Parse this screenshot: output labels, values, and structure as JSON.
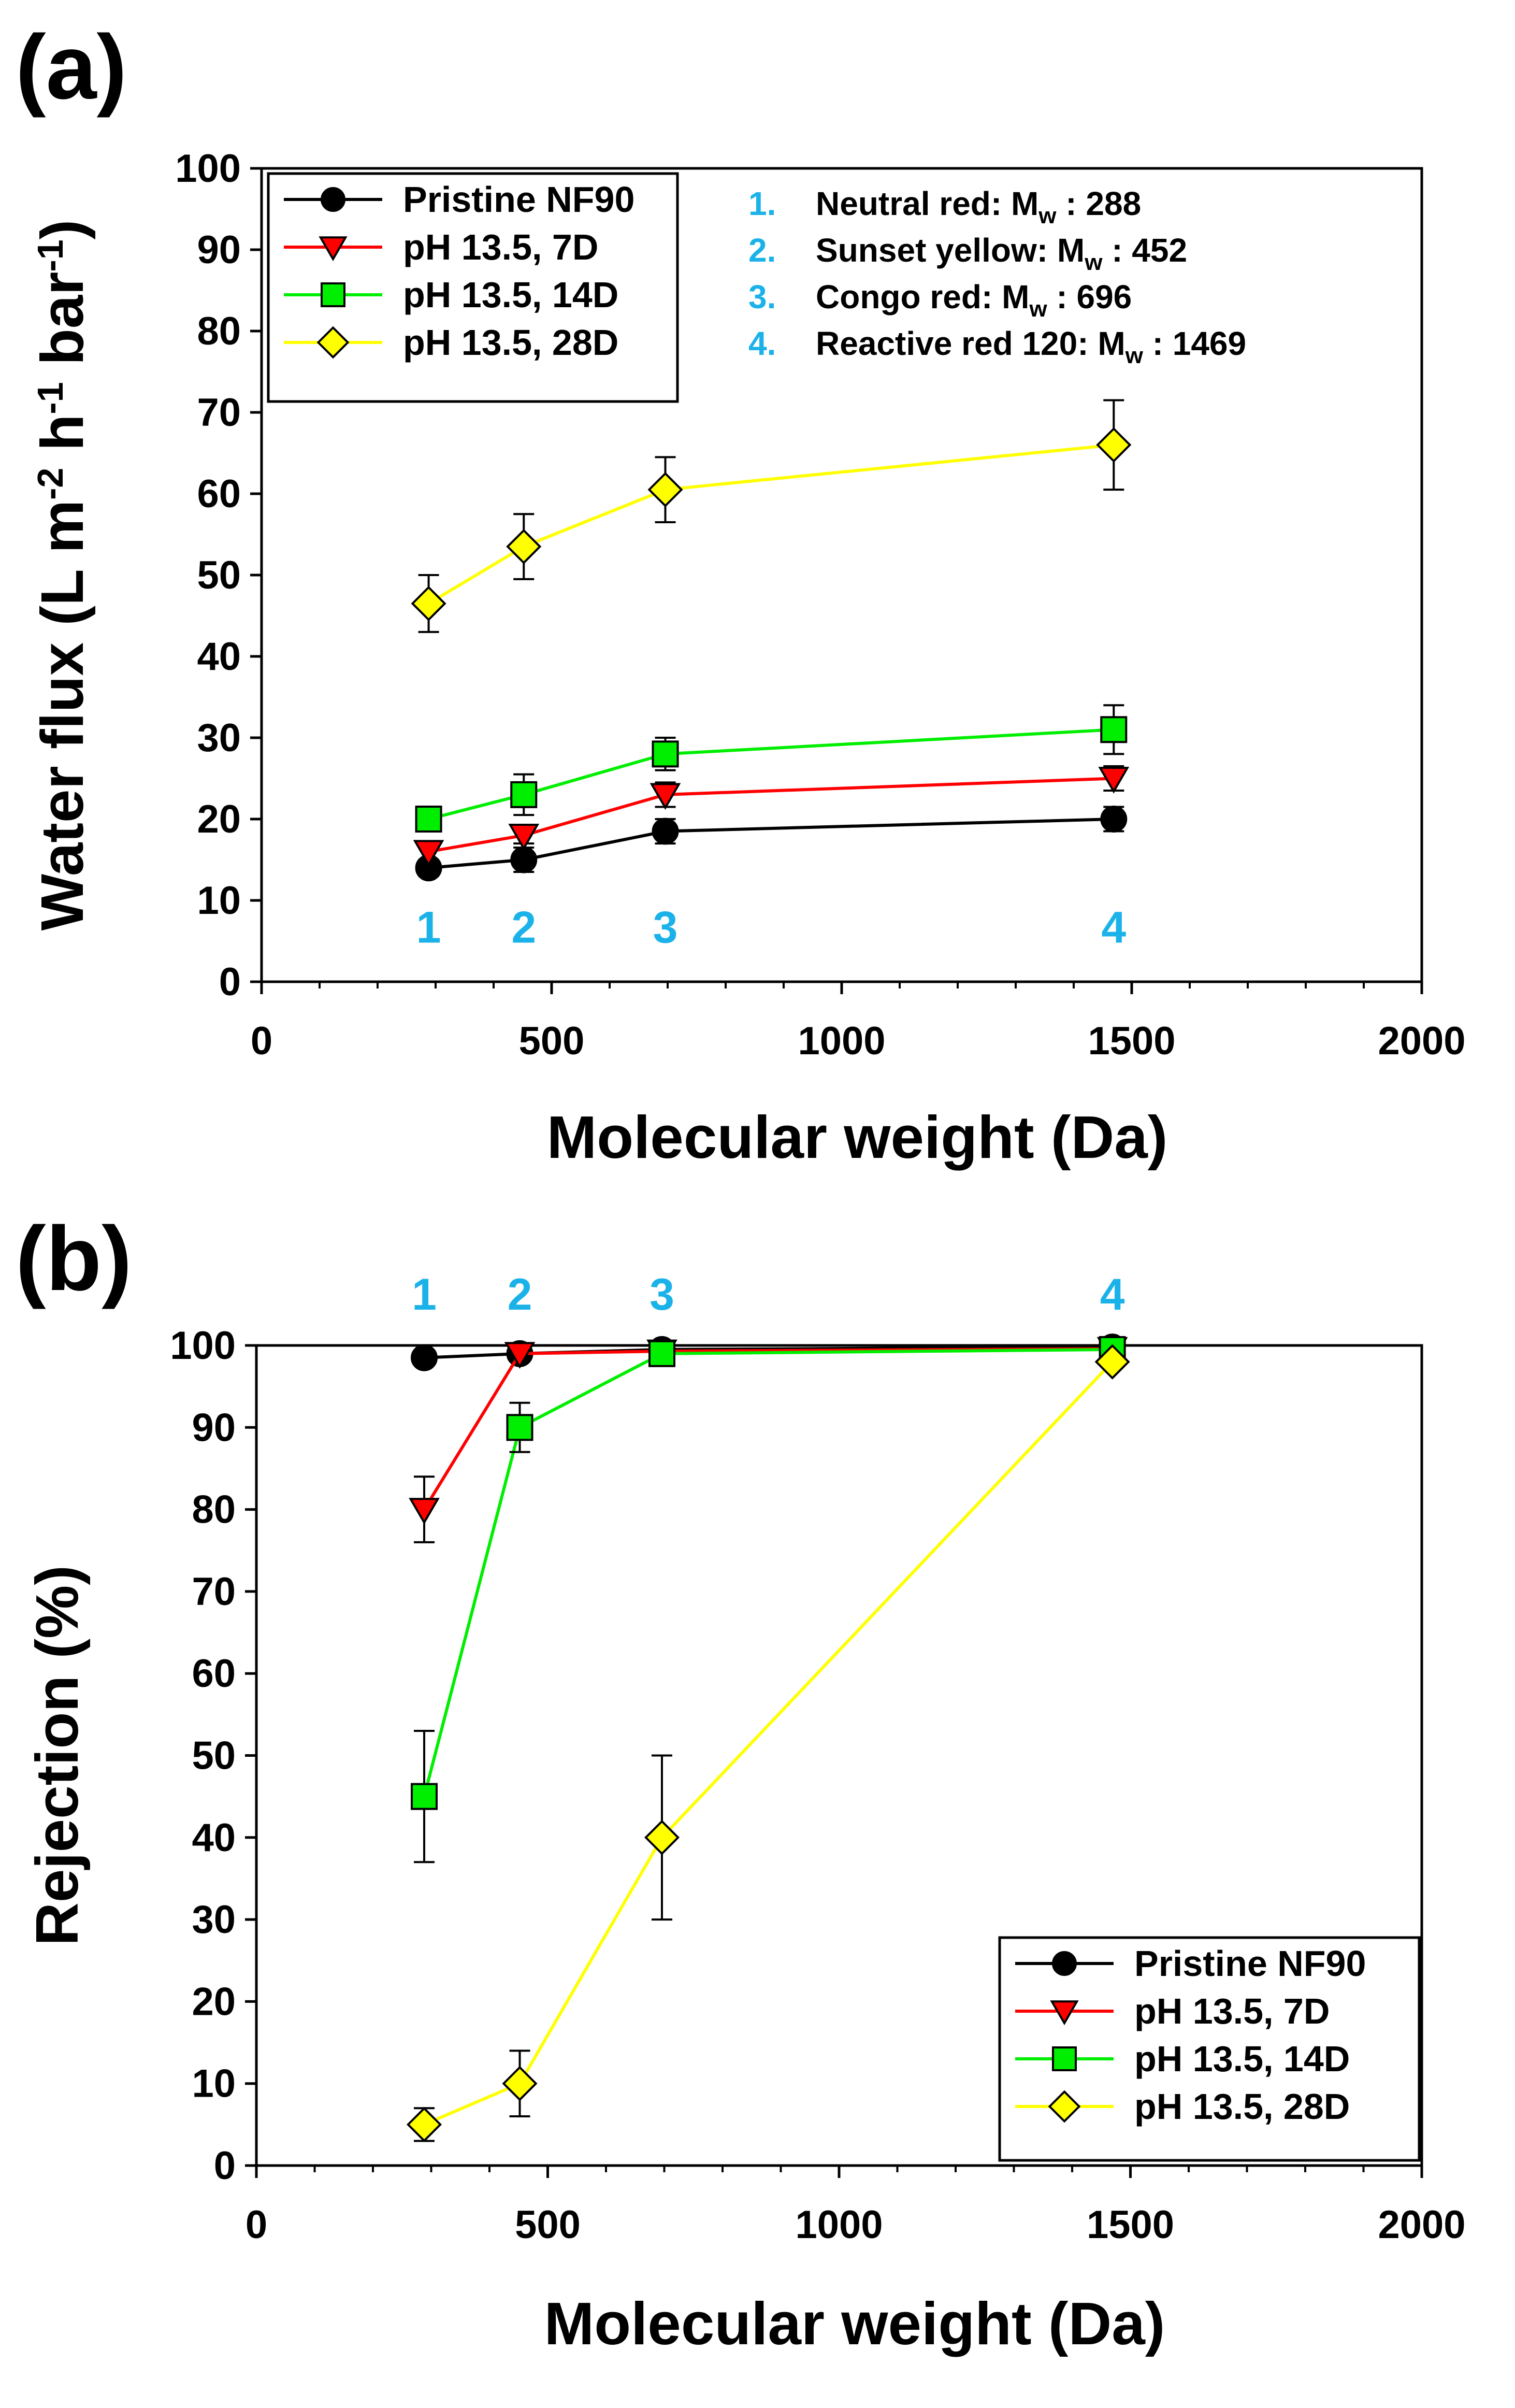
{
  "colors": {
    "axis": "#000000",
    "annotation": "#1ab2e8",
    "series_line": [
      "#000000",
      "#ff0000",
      "#00ee00",
      "#ffff00"
    ],
    "series_fill": [
      "#000000",
      "#ff0000",
      "#00ee00",
      "#ffff00"
    ]
  },
  "series_names": [
    "Pristine NF90",
    "pH 13.5, 7D",
    "pH 13.5, 14D",
    "pH 13.5, 28D"
  ],
  "chart_data": [
    {
      "type": "line",
      "panel_label": "(a)",
      "xlabel": "Molecular weight (Da)",
      "ylabel": {
        "base": "Water flux (L m",
        "sup1": "-2",
        "mid": " h",
        "sup2": "-1",
        "mid2": " bar",
        "sup3": "-1",
        "end": ")"
      },
      "xlim": [
        0,
        2000
      ],
      "ylim": [
        0,
        100
      ],
      "xticks": [
        0,
        500,
        1000,
        1500,
        2000
      ],
      "yticks": [
        0,
        10,
        20,
        30,
        40,
        50,
        60,
        70,
        80,
        90,
        100
      ],
      "x": [
        288,
        452,
        696,
        1469
      ],
      "point_markers": [
        {
          "label": "1",
          "x": 288,
          "y": 8
        },
        {
          "label": "2",
          "x": 452,
          "y": 8
        },
        {
          "label": "3",
          "x": 696,
          "y": 8
        },
        {
          "label": "4",
          "x": 1469,
          "y": 8
        }
      ],
      "dye_legend": [
        {
          "num": "1.",
          "name": "Neutral red: M",
          "sub": "w",
          "value": " : 288"
        },
        {
          "num": "2.",
          "name": "Sunset yellow: M",
          "sub": "w",
          "value": " : 452"
        },
        {
          "num": "3.",
          "name": "Congo red: M",
          "sub": "w",
          "value": " : 696"
        },
        {
          "num": "4.",
          "name": "Reactive red 120: M",
          "sub": "w",
          "value": " : 1469"
        }
      ],
      "legend_position": "top-left",
      "series": [
        {
          "name": "Pristine NF90",
          "marker": "circle",
          "values": [
            14,
            15,
            18.5,
            20
          ],
          "errors": [
            1.0,
            1.5,
            1.5,
            1.5
          ]
        },
        {
          "name": "pH 13.5, 7D",
          "marker": "triangle-down",
          "values": [
            16,
            18,
            23,
            25
          ],
          "errors": [
            1.0,
            1.0,
            1.5,
            1.5
          ]
        },
        {
          "name": "pH 13.5, 14D",
          "marker": "square",
          "values": [
            20,
            23,
            28,
            31
          ],
          "errors": [
            1.0,
            2.5,
            2.0,
            3.0
          ]
        },
        {
          "name": "pH 13.5, 28D",
          "marker": "diamond",
          "values": [
            46.5,
            53.5,
            60.5,
            66
          ],
          "errors": [
            3.5,
            4.0,
            4.0,
            5.5
          ]
        }
      ]
    },
    {
      "type": "line",
      "panel_label": "(b)",
      "xlabel": "Molecular weight (Da)",
      "ylabel": {
        "base": "Rejection (%)"
      },
      "xlim": [
        0,
        2000
      ],
      "ylim": [
        0,
        100
      ],
      "xticks": [
        0,
        500,
        1000,
        1500,
        2000
      ],
      "yticks": [
        0,
        10,
        20,
        30,
        40,
        50,
        60,
        70,
        80,
        90,
        100
      ],
      "x": [
        288,
        452,
        696,
        1469
      ],
      "point_markers": [
        {
          "label": "1",
          "x": 288,
          "y": 105
        },
        {
          "label": "2",
          "x": 452,
          "y": 105
        },
        {
          "label": "3",
          "x": 696,
          "y": 105
        },
        {
          "label": "4",
          "x": 1469,
          "y": 105
        }
      ],
      "legend_position": "bottom-right",
      "series": [
        {
          "name": "Pristine NF90",
          "marker": "circle",
          "values": [
            98.5,
            99,
            99.5,
            99.8
          ],
          "errors": [
            0,
            0,
            0,
            0
          ]
        },
        {
          "name": "pH 13.5, 7D",
          "marker": "triangle-down",
          "values": [
            80,
            99,
            99.3,
            99.6
          ],
          "errors": [
            4,
            0,
            0,
            0
          ]
        },
        {
          "name": "pH 13.5, 14D",
          "marker": "square",
          "values": [
            45,
            90,
            99,
            99.5
          ],
          "errors": [
            8,
            3,
            0,
            0
          ]
        },
        {
          "name": "pH 13.5, 28D",
          "marker": "diamond",
          "values": [
            5,
            10,
            40,
            98
          ],
          "errors": [
            2,
            4,
            10,
            0
          ]
        }
      ]
    }
  ]
}
